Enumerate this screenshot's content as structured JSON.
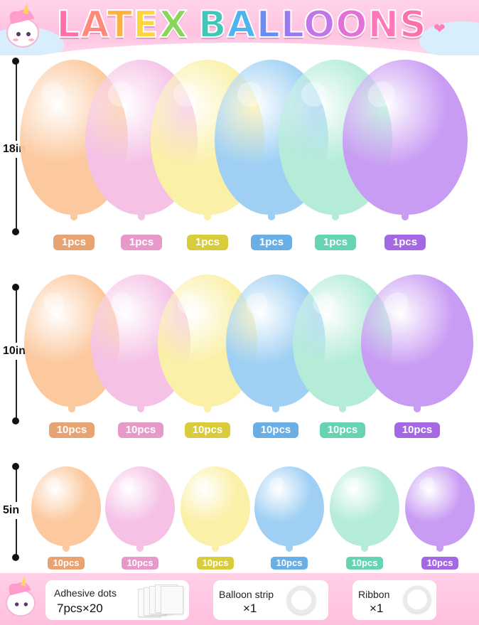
{
  "title": {
    "letters": [
      "L",
      "A",
      "T",
      "E",
      "X",
      " ",
      "B",
      "A",
      "L",
      "L",
      "O",
      "O",
      "N",
      "S"
    ],
    "colors": [
      "#ff6fae",
      "#ff8a7a",
      "#ffb13b",
      "#ffd43b",
      "#8ad65c",
      "#ffffff",
      "#3fc7b9",
      "#4fb3f0",
      "#6b8cf5",
      "#9b79f0",
      "#c176e8",
      "#e46fd6",
      "#ff77b8",
      "#ff6fae"
    ]
  },
  "sizes": [
    {
      "label": "18in",
      "count": "1pcs"
    },
    {
      "label": "10in",
      "count": "10pcs"
    },
    {
      "label": "5in",
      "count": "10pcs"
    }
  ],
  "balloon_colors": [
    {
      "name": "peach",
      "fill": "#fcc89d",
      "tag": "#e8a373"
    },
    {
      "name": "pink",
      "fill": "#f5c2e6",
      "tag": "#e79ac9"
    },
    {
      "name": "yellow",
      "fill": "#fbf0a8",
      "tag": "#d8cc3d"
    },
    {
      "name": "blue",
      "fill": "#9fd0f4",
      "tag": "#6aaee6"
    },
    {
      "name": "mint",
      "fill": "#b4ecd8",
      "tag": "#66d3b3"
    },
    {
      "name": "purple",
      "fill": "#c99cf4",
      "tag": "#a468e2"
    }
  ],
  "accessories": [
    {
      "label": "Adhesive dots",
      "qty": "7pcs×20",
      "icon": "adhesive-dots-icon"
    },
    {
      "label": "Balloon strip",
      "qty": "×1",
      "icon": "balloon-strip-icon"
    },
    {
      "label": "Ribbon",
      "qty": "×1",
      "icon": "ribbon-icon"
    }
  ]
}
